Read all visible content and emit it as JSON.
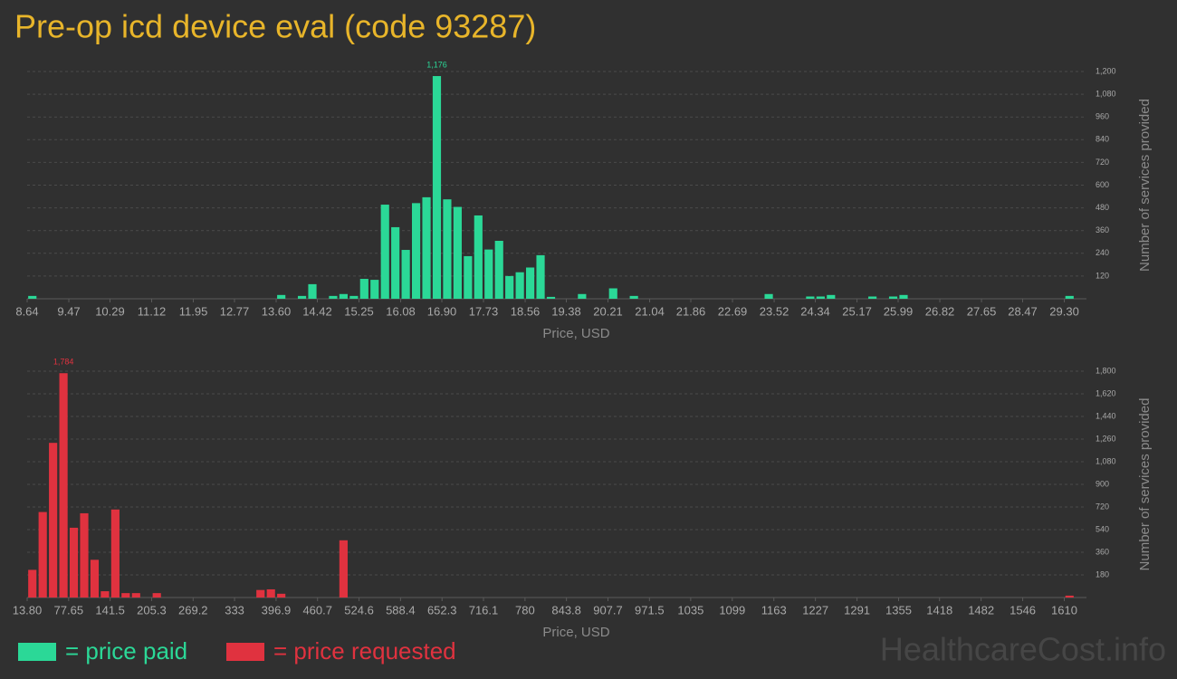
{
  "title": "Pre-op icd device eval (code 93287)",
  "watermark": "HealthcareCost.info",
  "chart_data": [
    {
      "type": "histogram",
      "name": "= price paid",
      "color": "#2bd897",
      "xlabel": "Price, USD",
      "ylabel": "Number of services provided",
      "grid": true,
      "bins": [
        8.64,
        8.8466,
        9.0532,
        9.2598,
        9.4664,
        9.673,
        9.8796,
        10.0862,
        10.2928,
        10.4994,
        10.706,
        10.9126,
        11.1192,
        11.3258,
        11.5324,
        11.739,
        11.9456,
        12.1522,
        12.3588,
        12.5654,
        12.772,
        12.9786,
        13.1852,
        13.3918,
        13.5984,
        13.805,
        14.0116,
        14.2182,
        14.4248,
        14.6314,
        14.838,
        15.0446,
        15.2512,
        15.4578,
        15.6644,
        15.871,
        16.0776,
        16.2842,
        16.4908,
        16.6974,
        16.904,
        17.1106,
        17.3172,
        17.5238,
        17.7304,
        17.937,
        18.1436,
        18.3502,
        18.5568,
        18.7634,
        18.97,
        19.1766,
        19.3832,
        19.5898,
        19.7964,
        20.003,
        20.2096,
        20.4162,
        20.6228,
        20.8294,
        21.036,
        21.2426,
        21.4492,
        21.6558,
        21.8624,
        22.069,
        22.2756,
        22.4822,
        22.6888,
        22.8954,
        23.102,
        23.3086,
        23.5152,
        23.7218,
        23.9284,
        24.135,
        24.3416,
        24.5482,
        24.7548,
        24.9614,
        25.168,
        25.3746,
        25.5812,
        25.7878,
        25.9944,
        26.201,
        26.4076,
        26.6142,
        26.8208,
        27.0274,
        27.234,
        27.4406,
        27.6472,
        27.8538,
        28.0604,
        28.267,
        28.4736,
        28.6802,
        28.8868,
        29.0934,
        29.3,
        29.5066
      ],
      "values": [
        15,
        0,
        0,
        0,
        0,
        0,
        0,
        0,
        0,
        0,
        0,
        0,
        0,
        0,
        0,
        0,
        0,
        0,
        0,
        0,
        0,
        0,
        0,
        0,
        20,
        0,
        15,
        77,
        0,
        15,
        25,
        15,
        105,
        100,
        497,
        378,
        258,
        505,
        536,
        1176,
        525,
        485,
        225,
        440,
        260,
        306,
        120,
        140,
        165,
        230,
        10,
        0,
        0,
        25,
        0,
        0,
        55,
        0,
        15,
        0,
        0,
        0,
        0,
        0,
        0,
        0,
        0,
        0,
        0,
        0,
        0,
        25,
        0,
        0,
        0,
        12,
        12,
        20,
        0,
        0,
        0,
        12,
        0,
        12,
        20,
        0,
        0,
        0,
        0,
        0,
        0,
        0,
        0,
        0,
        0,
        0,
        0,
        0,
        0,
        0,
        15
      ],
      "value_labels": {
        "39": "1,176"
      },
      "xlim": [
        8.64,
        29.5066
      ],
      "xticks": [
        8.64,
        9.47,
        10.29,
        11.12,
        11.95,
        12.77,
        {
          "value": 13.6,
          "label": "13.60"
        },
        14.42,
        15.25,
        16.08,
        {
          "value": 16.9,
          "label": "16.90"
        },
        17.73,
        18.56,
        19.38,
        20.21,
        21.04,
        21.86,
        22.69,
        23.52,
        24.34,
        25.17,
        25.99,
        26.82,
        27.65,
        28.47,
        {
          "value": 29.3,
          "label": "29.30"
        }
      ],
      "ylim": [
        0,
        1200
      ],
      "yticks": [
        120,
        240,
        360,
        480,
        600,
        720,
        840,
        960,
        {
          "value": 1080,
          "label": "1,080"
        },
        {
          "value": 1200,
          "label": "1,200"
        }
      ]
    },
    {
      "type": "histogram",
      "name": "= price requested",
      "color": "#e0323f",
      "xlabel": "Price, USD",
      "ylabel": "Number of services provided",
      "grid": true,
      "bins": [
        13.8,
        29.76,
        45.73,
        61.69,
        77.65,
        93.61,
        109.58,
        125.54,
        141.5,
        157.46,
        173.43,
        189.39,
        205.35,
        221.31,
        237.28,
        253.24,
        269.2,
        285.16,
        301.13,
        317.09,
        333.05,
        349.01,
        364.98,
        380.94,
        396.9,
        412.86,
        428.83,
        444.79,
        460.75,
        476.71,
        492.68,
        508.64,
        524.6,
        540.56,
        556.53,
        572.49,
        588.45,
        604.41,
        620.38,
        636.34,
        652.3,
        668.26,
        684.23,
        700.19,
        716.15,
        732.11,
        748.08,
        764.04,
        780,
        795.96,
        811.93,
        827.89,
        843.85,
        859.81,
        875.78,
        891.74,
        907.7,
        923.66,
        939.63,
        955.59,
        971.55,
        987.51,
        1003.48,
        1019.44,
        1035.4,
        1051.36,
        1067.33,
        1083.29,
        1099.25,
        1115.21,
        1131.18,
        1147.14,
        1163.1,
        1179.06,
        1195.03,
        1210.99,
        1226.95,
        1242.91,
        1258.88,
        1274.84,
        1290.8,
        1306.76,
        1322.73,
        1338.69,
        1354.65,
        1370.61,
        1386.58,
        1402.54,
        1418.5,
        1434.46,
        1450.43,
        1466.39,
        1482.35,
        1498.31,
        1514.28,
        1530.24,
        1546.2,
        1562.16,
        1578.13,
        1594.09,
        1610.05,
        1626.01
      ],
      "values": [
        220,
        680,
        1230,
        1784,
        555,
        670,
        300,
        50,
        700,
        35,
        35,
        0,
        35,
        0,
        0,
        0,
        0,
        0,
        0,
        0,
        0,
        0,
        60,
        65,
        30,
        0,
        0,
        0,
        0,
        0,
        455,
        0,
        0,
        0,
        0,
        0,
        0,
        0,
        0,
        0,
        0,
        0,
        0,
        0,
        0,
        0,
        0,
        0,
        0,
        0,
        0,
        0,
        0,
        0,
        0,
        0,
        0,
        0,
        0,
        0,
        0,
        0,
        0,
        0,
        0,
        0,
        0,
        0,
        0,
        0,
        0,
        0,
        0,
        0,
        0,
        0,
        0,
        0,
        0,
        0,
        0,
        0,
        0,
        0,
        0,
        0,
        0,
        0,
        0,
        0,
        0,
        0,
        0,
        0,
        0,
        0,
        0,
        0,
        0,
        0,
        15
      ],
      "value_labels": {
        "3": "1,784"
      },
      "xlim": [
        13.8,
        1626.01
      ],
      "xticks": [
        {
          "value": 13.8,
          "label": "13.80"
        },
        77.65,
        141.5,
        205.3,
        269.2,
        333,
        396.9,
        460.7,
        524.6,
        588.4,
        652.3,
        716.1,
        780,
        843.8,
        907.7,
        971.5,
        1035,
        1099,
        1163,
        1227,
        1291,
        1355,
        1418,
        1482,
        1546,
        1610
      ],
      "ylim": [
        0,
        1800
      ],
      "yticks": [
        180,
        360,
        540,
        720,
        900,
        {
          "value": 1080,
          "label": "1,080"
        },
        {
          "value": 1260,
          "label": "1,260"
        },
        {
          "value": 1440,
          "label": "1,440"
        },
        {
          "value": 1620,
          "label": "1,620"
        },
        {
          "value": 1800,
          "label": "1,800"
        }
      ]
    }
  ]
}
